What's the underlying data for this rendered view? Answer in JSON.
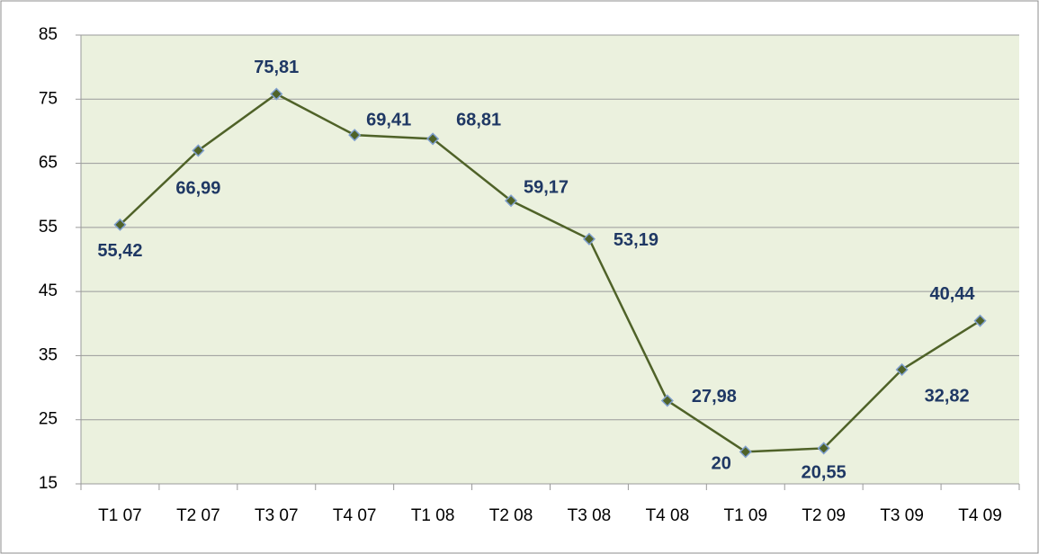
{
  "chart_data": {
    "type": "line",
    "categories": [
      "T1 07",
      "T2 07",
      "T3 07",
      "T4 07",
      "T1 08",
      "T2 08",
      "T3 08",
      "T4 08",
      "T1 09",
      "T2 09",
      "T3 09",
      "T4 09"
    ],
    "series": [
      {
        "color": "#4f6228",
        "values": [
          55.42,
          66.99,
          75.81,
          69.41,
          68.81,
          59.17,
          53.19,
          27.98,
          20,
          20.55,
          32.82,
          40.44
        ],
        "value_labels": [
          "55,42",
          "66,99",
          "75,81",
          "69,41",
          "68,81",
          "59,17",
          "53,19",
          "27,98",
          "20",
          "20,55",
          "32,82",
          "40,44"
        ]
      }
    ],
    "ylim": [
      15,
      85
    ],
    "yticks": [
      15,
      25,
      35,
      45,
      55,
      65,
      75,
      85
    ],
    "grid": true
  }
}
